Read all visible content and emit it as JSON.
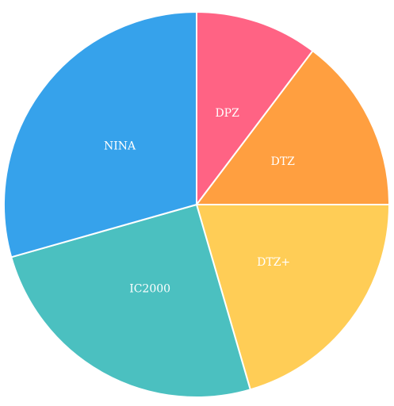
{
  "chart_data": {
    "type": "pie",
    "title": "",
    "start_angle_deg": 0,
    "direction": "clockwise-from-top",
    "slices": [
      {
        "label": "DPZ",
        "value": 10.3,
        "color": "#ff6384"
      },
      {
        "label": "DTZ",
        "value": 14.7,
        "color": "#ff9f40"
      },
      {
        "label": "DTZ+",
        "value": 20.5,
        "color": "#ffcd56"
      },
      {
        "label": "IC2000",
        "value": 25.1,
        "color": "#4bc0c0"
      },
      {
        "label": "NINA",
        "value": 29.4,
        "color": "#36a2eb"
      }
    ],
    "legend": "none"
  }
}
